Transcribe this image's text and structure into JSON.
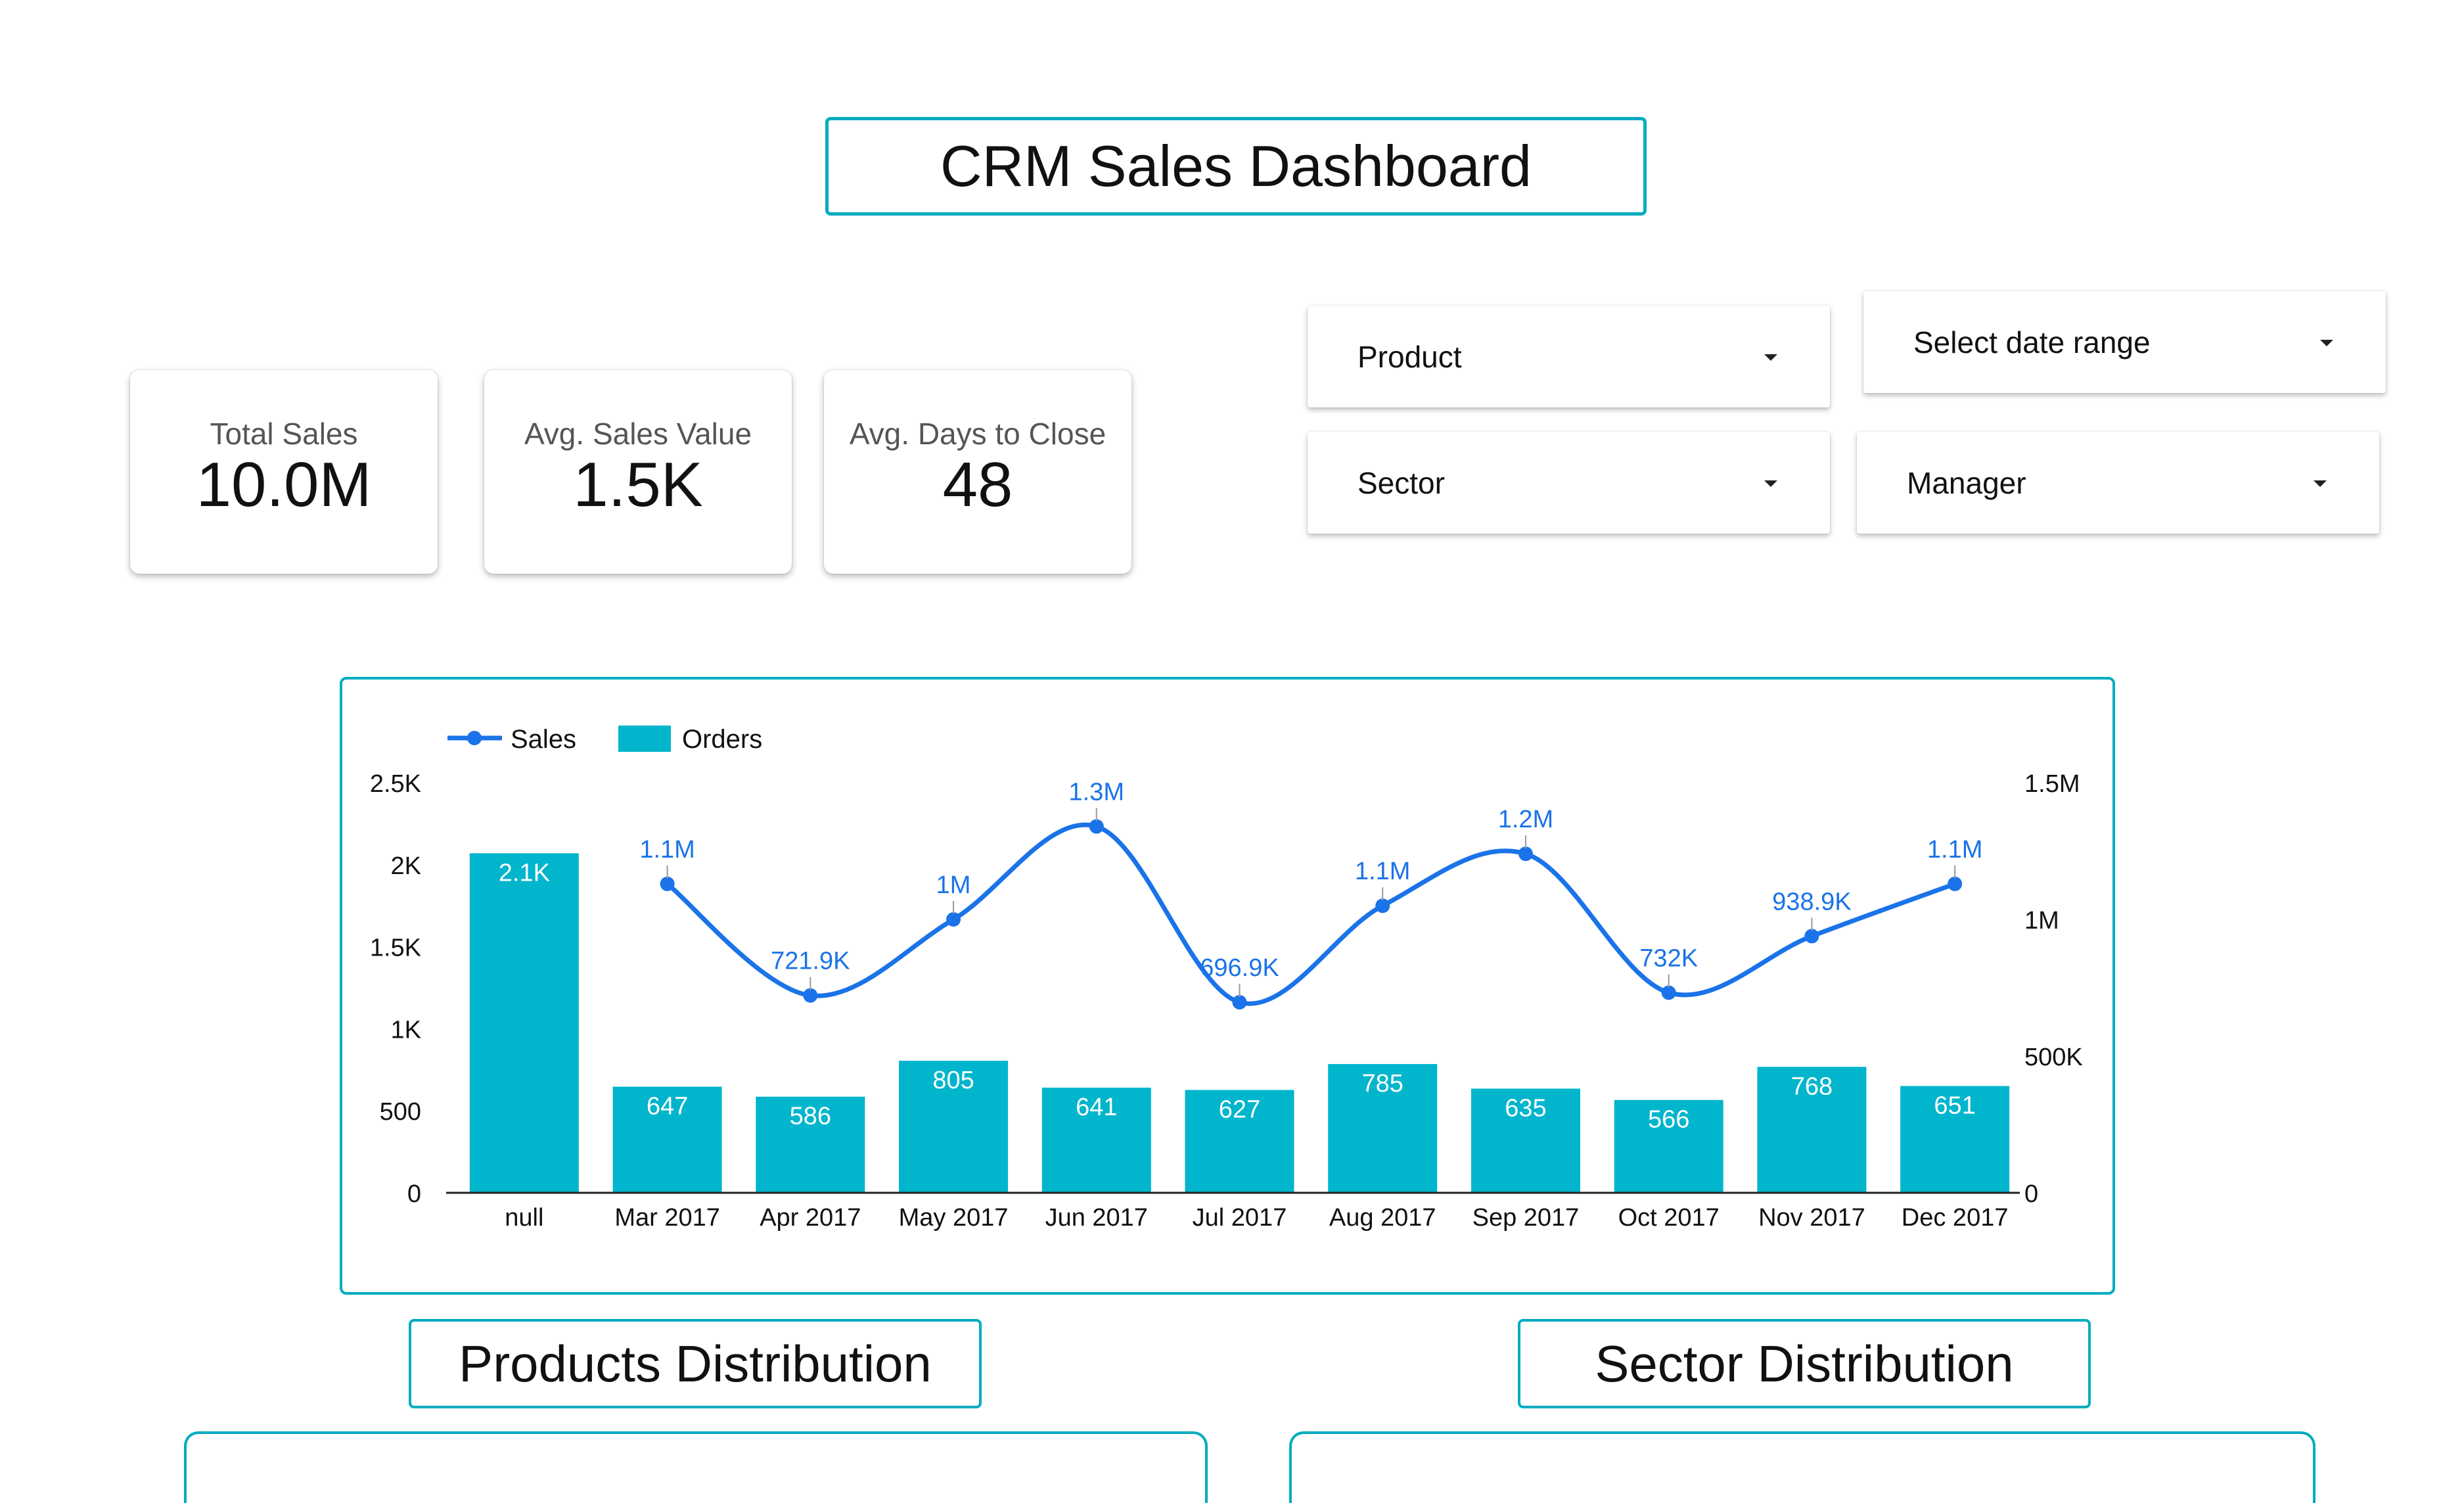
{
  "title": "CRM Sales Dashboard",
  "kpis": [
    {
      "label": "Total Sales",
      "value": "10.0M"
    },
    {
      "label": "Avg. Sales Value",
      "value": "1.5K"
    },
    {
      "label": "Avg. Days to Close",
      "value": "48"
    }
  ],
  "filters": {
    "product": "Product",
    "date_range": "Select date range",
    "sector": "Sector",
    "manager": "Manager"
  },
  "sections": {
    "products": "Products Distribution",
    "sector": "Sector Distribution"
  },
  "colors": {
    "accent": "#00acc1",
    "bar": "#00b5cc",
    "line": "#1a73e8"
  },
  "chart_data": {
    "type": "bar",
    "categories": [
      "null",
      "Mar 2017",
      "Apr 2017",
      "May 2017",
      "Jun 2017",
      "Jul 2017",
      "Aug 2017",
      "Sep 2017",
      "Oct 2017",
      "Nov 2017",
      "Dec 2017"
    ],
    "series": [
      {
        "name": "Orders",
        "type": "bar",
        "axis": "left",
        "values": [
          2070,
          647,
          586,
          805,
          641,
          627,
          785,
          635,
          566,
          768,
          651
        ],
        "labels": [
          "2.1K",
          "647",
          "586",
          "805",
          "641",
          "627",
          "785",
          "635",
          "566",
          "768",
          "651"
        ]
      },
      {
        "name": "Sales",
        "type": "line",
        "axis": "right",
        "values": [
          null,
          1130000,
          721900,
          1000000,
          1340000,
          696900,
          1050000,
          1240000,
          732000,
          938900,
          1130000
        ],
        "labels": [
          null,
          "1.1M",
          "721.9K",
          "1M",
          "1.3M",
          "696.9K",
          "1.1M",
          "1.2M",
          "732K",
          "938.9K",
          "1.1M"
        ]
      }
    ],
    "left_axis": {
      "ticks": [
        "0",
        "500",
        "1K",
        "1.5K",
        "2K",
        "2.5K"
      ],
      "tick_values": [
        0,
        500,
        1000,
        1500,
        2000,
        2500
      ],
      "range": [
        0,
        2500
      ]
    },
    "right_axis": {
      "ticks": [
        "0",
        "500K",
        "1M",
        "1.5M"
      ],
      "tick_values": [
        0,
        500000,
        1000000,
        1500000
      ],
      "range": [
        0,
        1500000
      ]
    },
    "legend_position": "top-left",
    "grid": false
  }
}
